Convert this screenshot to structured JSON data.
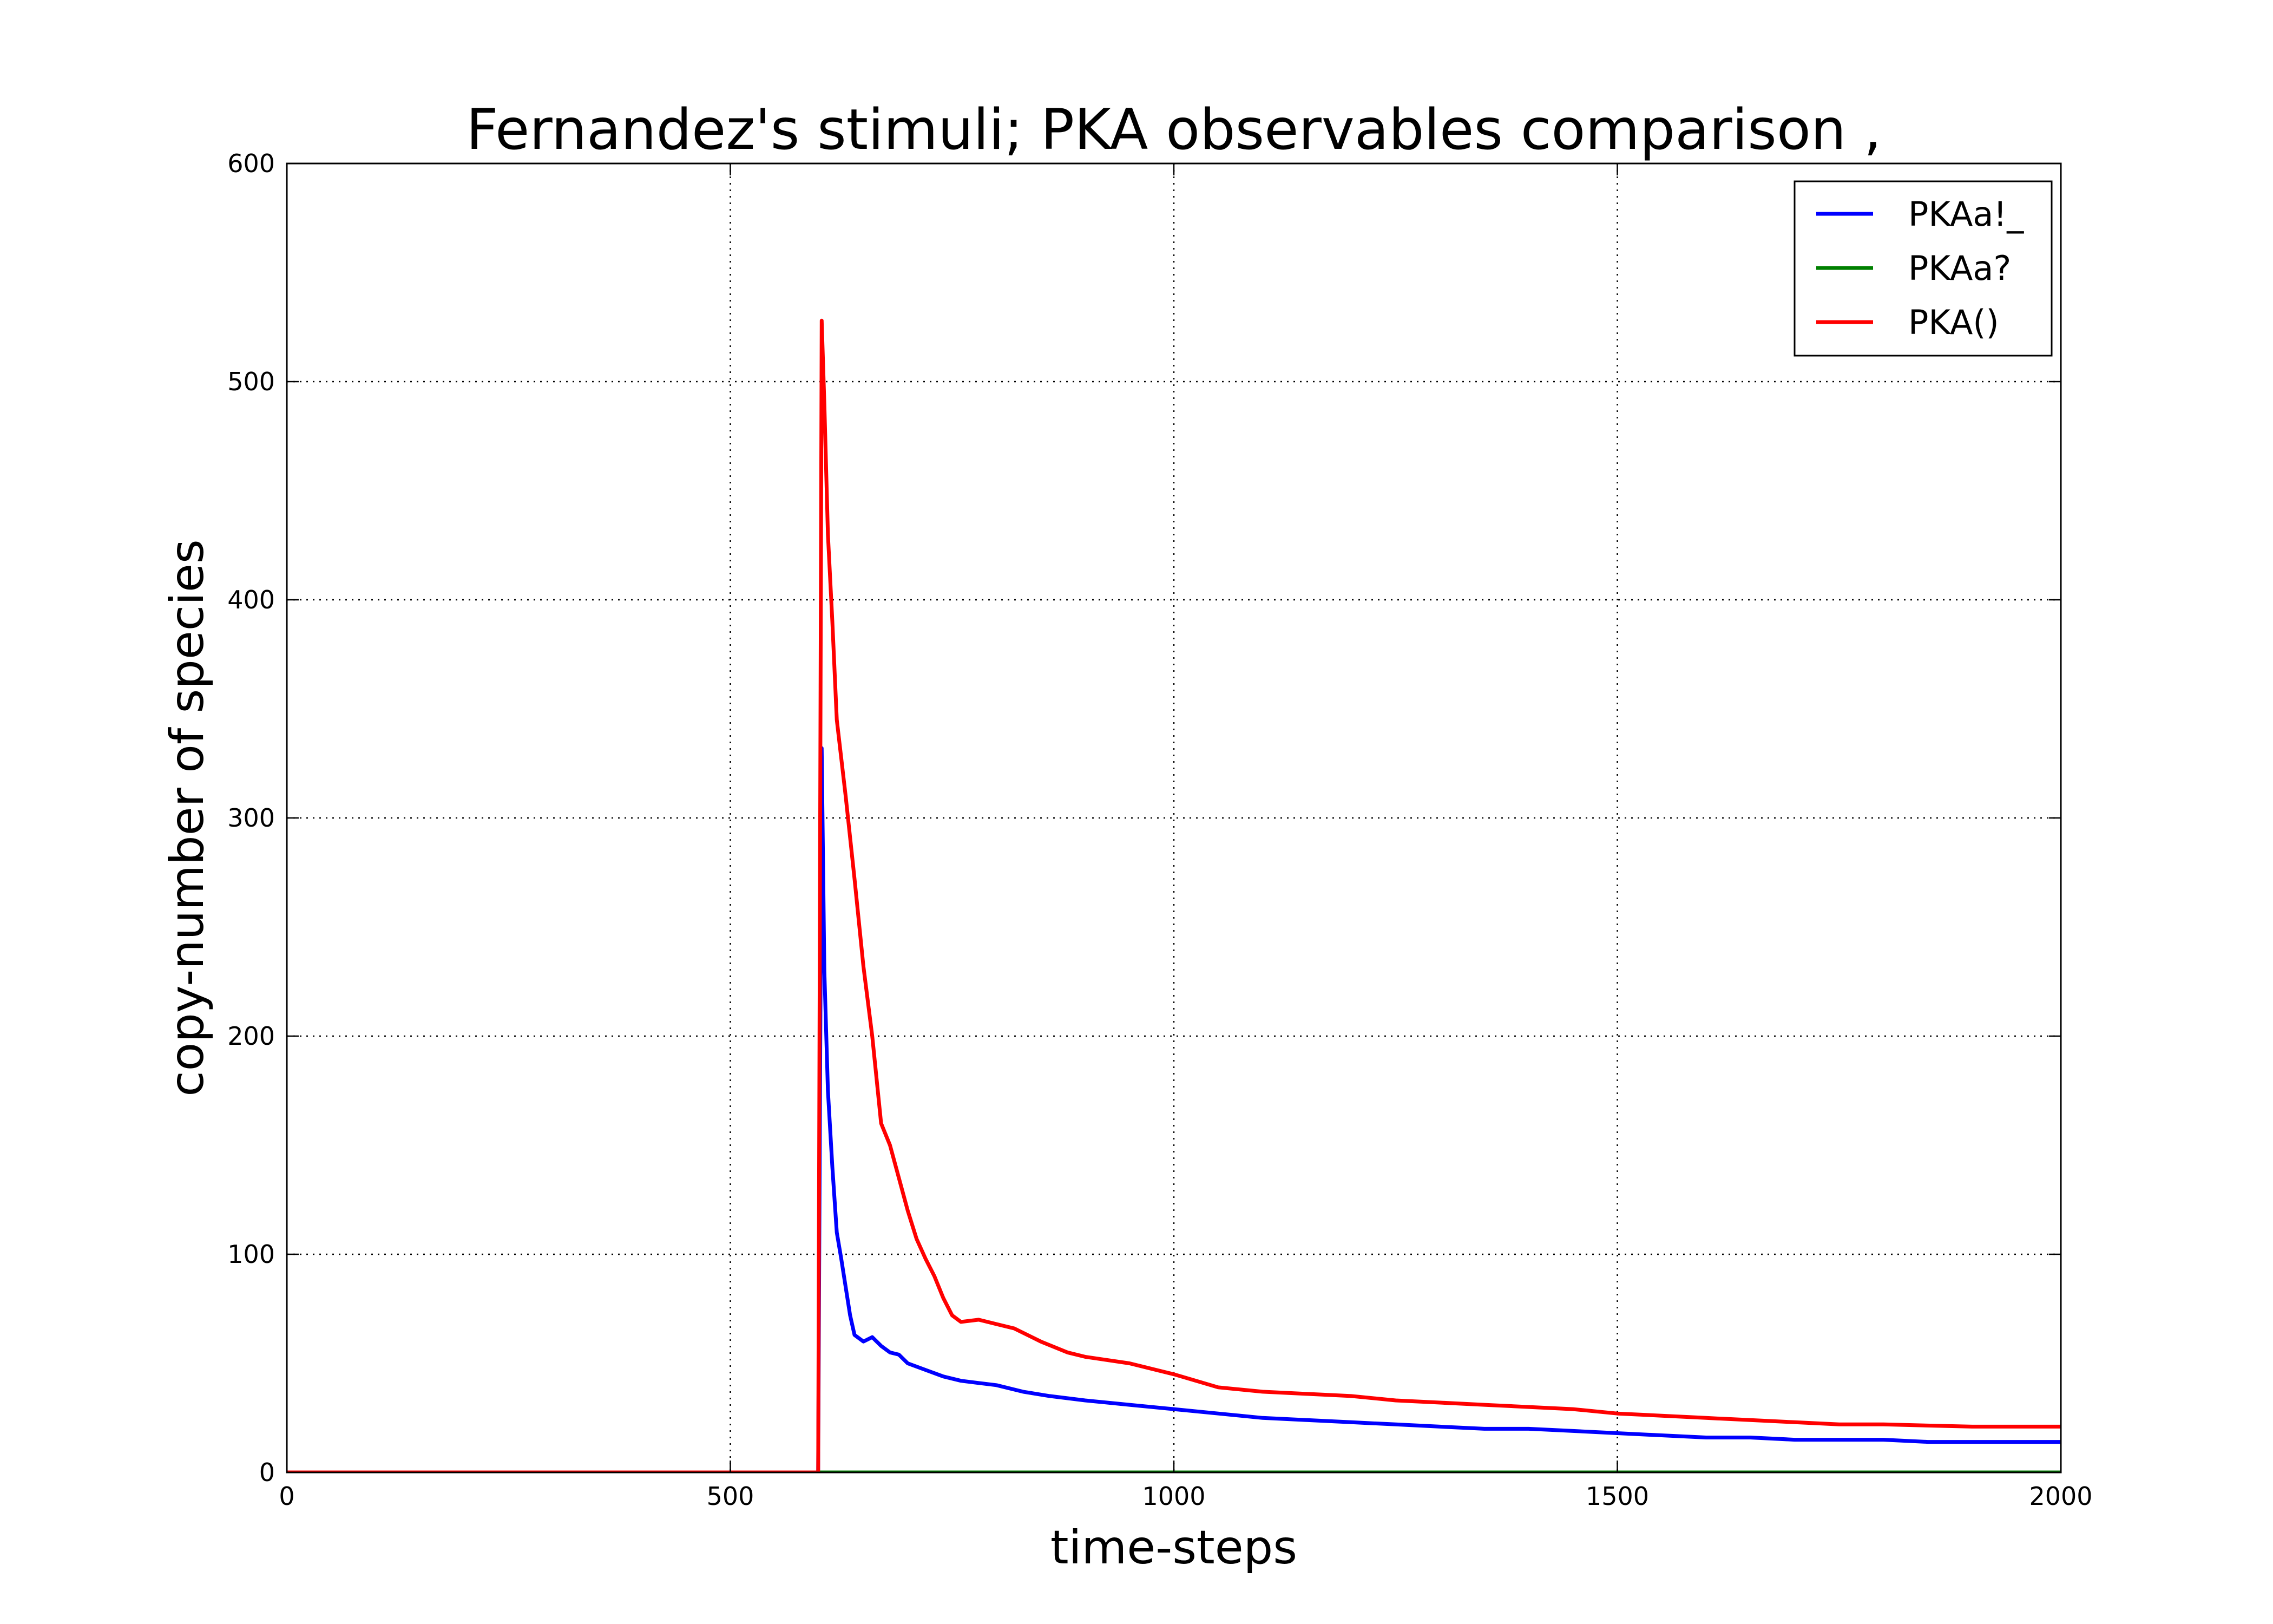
{
  "chart_data": {
    "type": "line",
    "title": "Fernandez's stimuli; PKA observables comparison ,",
    "xlabel": "time-steps",
    "ylabel": "copy-number of species",
    "xlim": [
      0,
      2000
    ],
    "ylim": [
      0,
      600
    ],
    "xticks": [
      0,
      500,
      1000,
      1500,
      2000
    ],
    "yticks": [
      0,
      100,
      200,
      300,
      400,
      500,
      600
    ],
    "grid": true,
    "legend_position": "top-right",
    "series": [
      {
        "name": "PKAa!_",
        "color": "#0000ff",
        "points": [
          [
            0,
            0
          ],
          [
            598,
            0
          ],
          [
            599,
            0
          ],
          [
            603,
            332
          ],
          [
            606,
            230
          ],
          [
            610,
            175
          ],
          [
            615,
            140
          ],
          [
            620,
            110
          ],
          [
            625,
            98
          ],
          [
            630,
            85
          ],
          [
            635,
            72
          ],
          [
            640,
            63
          ],
          [
            650,
            60
          ],
          [
            660,
            62
          ],
          [
            670,
            58
          ],
          [
            680,
            55
          ],
          [
            690,
            54
          ],
          [
            700,
            50
          ],
          [
            720,
            47
          ],
          [
            740,
            44
          ],
          [
            760,
            42
          ],
          [
            780,
            41
          ],
          [
            800,
            40
          ],
          [
            830,
            37
          ],
          [
            860,
            35
          ],
          [
            900,
            33
          ],
          [
            950,
            31
          ],
          [
            1000,
            29
          ],
          [
            1050,
            27
          ],
          [
            1100,
            25
          ],
          [
            1150,
            24
          ],
          [
            1200,
            23
          ],
          [
            1250,
            22
          ],
          [
            1300,
            21
          ],
          [
            1350,
            20
          ],
          [
            1400,
            20
          ],
          [
            1450,
            19
          ],
          [
            1500,
            18
          ],
          [
            1550,
            17
          ],
          [
            1600,
            16
          ],
          [
            1650,
            16
          ],
          [
            1700,
            15
          ],
          [
            1750,
            15
          ],
          [
            1800,
            15
          ],
          [
            1850,
            14
          ],
          [
            1900,
            14
          ],
          [
            1950,
            14
          ],
          [
            2000,
            14
          ]
        ]
      },
      {
        "name": "PKAa?",
        "color": "#008000",
        "points": [
          [
            0,
            0
          ],
          [
            598,
            0
          ],
          [
            599,
            0
          ],
          [
            602,
            0
          ],
          [
            2000,
            0
          ]
        ]
      },
      {
        "name": "PKA()",
        "color": "#ff0000",
        "points": [
          [
            0,
            0
          ],
          [
            598,
            0
          ],
          [
            599,
            0
          ],
          [
            603,
            528
          ],
          [
            606,
            490
          ],
          [
            610,
            430
          ],
          [
            615,
            390
          ],
          [
            620,
            345
          ],
          [
            630,
            310
          ],
          [
            640,
            272
          ],
          [
            650,
            232
          ],
          [
            660,
            200
          ],
          [
            670,
            160
          ],
          [
            680,
            150
          ],
          [
            690,
            135
          ],
          [
            700,
            120
          ],
          [
            710,
            107
          ],
          [
            720,
            98
          ],
          [
            730,
            90
          ],
          [
            740,
            80
          ],
          [
            750,
            72
          ],
          [
            760,
            69
          ],
          [
            780,
            70
          ],
          [
            800,
            68
          ],
          [
            820,
            66
          ],
          [
            850,
            60
          ],
          [
            880,
            55
          ],
          [
            900,
            53
          ],
          [
            950,
            50
          ],
          [
            1000,
            45
          ],
          [
            1050,
            39
          ],
          [
            1100,
            37
          ],
          [
            1150,
            36
          ],
          [
            1200,
            35
          ],
          [
            1250,
            33
          ],
          [
            1300,
            32
          ],
          [
            1350,
            31
          ],
          [
            1400,
            30
          ],
          [
            1450,
            29
          ],
          [
            1500,
            27
          ],
          [
            1550,
            26
          ],
          [
            1600,
            25
          ],
          [
            1650,
            24
          ],
          [
            1700,
            23
          ],
          [
            1750,
            22
          ],
          [
            1800,
            22
          ],
          [
            1900,
            21
          ],
          [
            2000,
            21
          ]
        ]
      }
    ]
  }
}
